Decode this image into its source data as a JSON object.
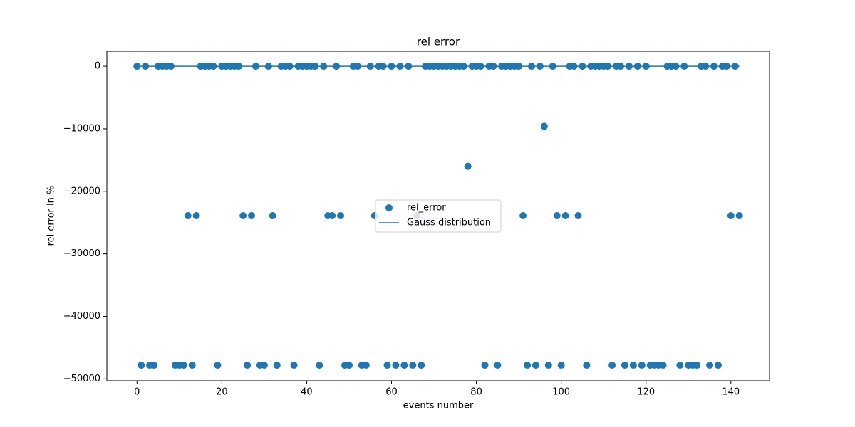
{
  "chart_data": {
    "type": "scatter",
    "title": "rel error",
    "xlabel": "events number",
    "ylabel": "rel error in %",
    "x": [
      0,
      1,
      2,
      3,
      4,
      5,
      6,
      7,
      8,
      9,
      10,
      11,
      12,
      13,
      14,
      15,
      16,
      17,
      18,
      19,
      20,
      21,
      22,
      23,
      24,
      25,
      26,
      27,
      28,
      29,
      30,
      31,
      32,
      33,
      34,
      35,
      36,
      37,
      38,
      39,
      40,
      41,
      42,
      43,
      44,
      45,
      46,
      47,
      48,
      49,
      50,
      51,
      52,
      53,
      54,
      55,
      56,
      57,
      58,
      59,
      60,
      61,
      62,
      63,
      64,
      65,
      66,
      67,
      68,
      69,
      70,
      71,
      72,
      73,
      74,
      75,
      76,
      77,
      78,
      79,
      80,
      81,
      82,
      83,
      84,
      85,
      86,
      87,
      88,
      89,
      90,
      91,
      92,
      93,
      94,
      95,
      96,
      97,
      98,
      99,
      100,
      101,
      102,
      103,
      104,
      105,
      106,
      107,
      108,
      109,
      110,
      111,
      112,
      113,
      114,
      115,
      116,
      117,
      118,
      119,
      120,
      121,
      122,
      123,
      124,
      125,
      126,
      127,
      128,
      129,
      130,
      131,
      132,
      133,
      134,
      135,
      136,
      137,
      138,
      139,
      140,
      141,
      142
    ],
    "series": [
      {
        "name": "rel_error",
        "type": "scatter",
        "color": "#1f77b4",
        "values": [
          0,
          -47800,
          0,
          -47800,
          -47800,
          0,
          0,
          0,
          0,
          -47800,
          -47800,
          -47800,
          -23900,
          -47800,
          -23900,
          0,
          0,
          0,
          0,
          -47800,
          0,
          0,
          0,
          0,
          0,
          -23900,
          -47800,
          -23900,
          0,
          -47800,
          -47800,
          0,
          -23900,
          -47800,
          0,
          0,
          0,
          -47800,
          0,
          0,
          0,
          0,
          0,
          -47800,
          0,
          -23900,
          -23900,
          0,
          -23900,
          -47800,
          -47800,
          0,
          0,
          -47800,
          -47800,
          0,
          -23900,
          0,
          0,
          -47800,
          0,
          -47800,
          0,
          -47800,
          0,
          -47800,
          -23900,
          -47800,
          0,
          0,
          0,
          0,
          0,
          0,
          0,
          0,
          0,
          0,
          -16000,
          0,
          0,
          0,
          -47800,
          0,
          0,
          -47800,
          0,
          0,
          0,
          0,
          0,
          -23900,
          -47800,
          0,
          -47800,
          0,
          -9600,
          -47800,
          0,
          -23900,
          -47800,
          -23900,
          0,
          0,
          -23900,
          0,
          -47800,
          0,
          0,
          0,
          0,
          0,
          -47800,
          0,
          0,
          -47800,
          0,
          -47800,
          0,
          -47800,
          0,
          -47800,
          -47800,
          -47800,
          -47800,
          0,
          0,
          0,
          -47800,
          0,
          -47800,
          -47800,
          -47800,
          0,
          0,
          -47800,
          0,
          -47800,
          0,
          0,
          -23900,
          0,
          -23900
        ]
      },
      {
        "name": "Gauss distribution",
        "type": "line",
        "color": "#1f77b4",
        "x": [
          0,
          142
        ],
        "values": [
          0,
          0
        ]
      }
    ],
    "xlim": [
      -7.1,
      149.1
    ],
    "ylim": [
      -50300,
      2400
    ],
    "xticks": [
      0,
      20,
      40,
      60,
      80,
      100,
      120,
      140
    ],
    "yticks": [
      0,
      {
        "value": -10000,
        "label": "−10000"
      },
      {
        "value": -20000,
        "label": "−20000"
      },
      {
        "value": -30000,
        "label": "−30000"
      },
      {
        "value": -40000,
        "label": "−40000"
      },
      {
        "value": -50000,
        "label": "−50000"
      }
    ],
    "legend": "center"
  }
}
